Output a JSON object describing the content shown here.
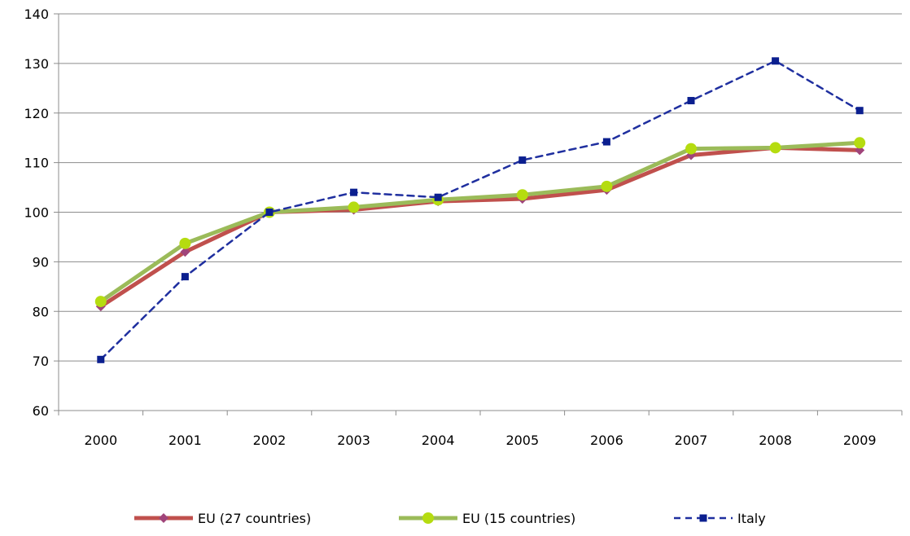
{
  "chart_data": {
    "type": "line",
    "title": "",
    "xlabel": "",
    "ylabel": "",
    "categories": [
      "2000",
      "2001",
      "2002",
      "2003",
      "2004",
      "2005",
      "2006",
      "2007",
      "2008",
      "2009"
    ],
    "ylim": [
      60,
      140
    ],
    "yticks": [
      60,
      70,
      80,
      90,
      100,
      110,
      120,
      130,
      140
    ],
    "grid": "horizontal",
    "legend_position": "bottom",
    "series": [
      {
        "name": "EU (27 countries)",
        "color": "#c0504d",
        "marker_color": "#a0447a",
        "marker": "diamond",
        "line_style": "solid",
        "values": [
          81,
          92,
          100,
          100.5,
          102.2,
          102.7,
          104.5,
          111.5,
          113,
          112.5
        ]
      },
      {
        "name": "EU (15 countries)",
        "color": "#9bbb59",
        "marker_color": "#b5dc10",
        "marker": "circle",
        "line_style": "solid",
        "values": [
          82,
          93.7,
          100,
          101,
          102.5,
          103.5,
          105.2,
          112.8,
          113,
          114
        ]
      },
      {
        "name": "Italy",
        "color": "#1f2f9f",
        "marker_color": "#0b1f8f",
        "marker": "square",
        "line_style": "dashed",
        "values": [
          70.3,
          87,
          100,
          104,
          103,
          110.5,
          114.2,
          122.5,
          130.5,
          120.5
        ]
      }
    ]
  }
}
